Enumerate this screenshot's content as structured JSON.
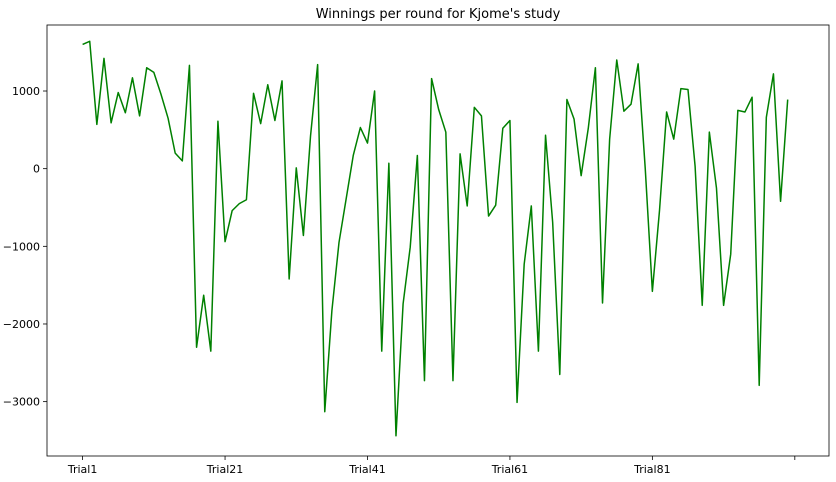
{
  "chart_data": {
    "type": "line",
    "title": "Winnings per round for Kjome's study",
    "xlabel": "",
    "ylabel": "",
    "grid": false,
    "legend": "none",
    "x_tick_labels": [
      "Trial1",
      "Trial21",
      "Trial41",
      "Trial61",
      "Trial81",
      ""
    ],
    "x_tick_positions": [
      0,
      20,
      40,
      60,
      80,
      100
    ],
    "xlim": [
      -5,
      104.8
    ],
    "y_ticks": [
      -3000,
      -2000,
      -1000,
      0,
      1000
    ],
    "ylim": [
      -3700,
      1850
    ],
    "colors": {
      "line": "#008000",
      "axis": "#000000",
      "background": "#ffffff"
    },
    "series": [
      {
        "values": [
          1600,
          1640,
          570,
          1420,
          590,
          980,
          720,
          1170,
          680,
          1300,
          1240,
          960,
          650,
          200,
          100,
          1330,
          -2300,
          -1630,
          -2350,
          610,
          -940,
          -540,
          -450,
          -400,
          970,
          580,
          1080,
          620,
          1130,
          -1420,
          10,
          -860,
          420,
          1340,
          -3130,
          -1830,
          -950,
          -390,
          170,
          530,
          330,
          1000,
          -2350,
          70,
          -3440,
          -1740,
          -1010,
          170,
          -2730,
          1160,
          760,
          470,
          -2730,
          190,
          -480,
          790,
          680,
          -610,
          -470,
          520,
          620,
          -3010,
          -1230,
          -480,
          -2350,
          430,
          -690,
          -2650,
          890,
          640,
          -90,
          520,
          1300,
          -1730,
          380,
          1400,
          740,
          830,
          1350,
          0,
          -1580,
          -540,
          730,
          380,
          1030,
          1020,
          30,
          -1760,
          470,
          -250,
          -1760,
          -1100,
          750,
          730,
          920,
          -2790,
          660,
          1220,
          -420,
          890
        ]
      }
    ]
  }
}
